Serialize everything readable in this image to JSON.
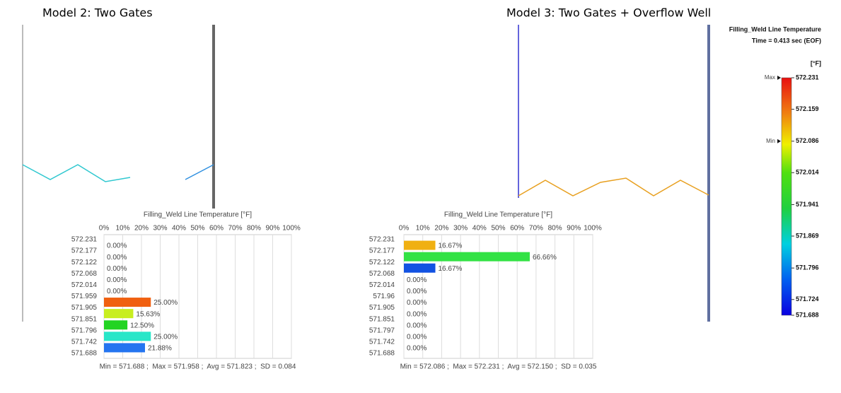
{
  "headings": [
    "Model 2: Two Gates",
    "Model 3: Two Gates + Overflow Well"
  ],
  "scale": {
    "title": "Filling_Weld Line Temperature",
    "time": "Time = 0.413 sec (EOF)",
    "unit": "[°F]",
    "ylim": [
      571.688,
      572.231
    ],
    "ticks": [
      572.231,
      572.159,
      572.086,
      572.014,
      571.941,
      571.869,
      571.796,
      571.724,
      571.688
    ],
    "markers": [
      {
        "label": "Max",
        "value": 572.231
      },
      {
        "label": "Min",
        "value": 572.086
      }
    ]
  },
  "chart_data": [
    {
      "type": "hbar-histogram",
      "title": "Filling_Weld Line Temperature [°F]",
      "bins": [
        572.231,
        572.177,
        572.122,
        572.068,
        572.014,
        571.959,
        571.905,
        571.851,
        571.796,
        571.742,
        571.688
      ],
      "values": [
        0,
        0,
        0,
        0,
        0,
        25,
        15.63,
        12.5,
        25,
        21.88
      ],
      "value_labels": [
        "0.00%",
        "0.00%",
        "0.00%",
        "0.00%",
        "0.00%",
        "25.00%",
        "15.63%",
        "12.50%",
        "25.00%",
        "21.88%"
      ],
      "colors": [
        "#f06010",
        "#f06010",
        "#f06010",
        "#f06010",
        "#f06010",
        "#f06010",
        "#c8ee20",
        "#22d422",
        "#28e6c8",
        "#2474f0"
      ],
      "xlim": [
        0,
        100
      ],
      "xticks": [
        {
          "value": 0,
          "label": "0%"
        },
        {
          "value": 10,
          "label": "10%"
        },
        {
          "value": 20,
          "label": "20%"
        },
        {
          "value": 30,
          "label": "30%"
        },
        {
          "value": 40,
          "label": "40%"
        },
        {
          "value": 50,
          "label": "50%"
        },
        {
          "value": 60,
          "label": "60%"
        },
        {
          "value": 70,
          "label": "70%"
        },
        {
          "value": 80,
          "label": "80%"
        },
        {
          "value": 90,
          "label": "90%"
        },
        {
          "value": 100,
          "label": "100%"
        }
      ],
      "grid": true,
      "footer": "Min = 571.688 ;  Max = 571.958 ;  Avg = 571.823 ;  SD = 0.084"
    },
    {
      "type": "hbar-histogram",
      "title": "Filling_Weld Line Temperature [°F]",
      "bins": [
        572.231,
        572.177,
        572.122,
        572.068,
        572.014,
        571.96,
        571.905,
        571.851,
        571.797,
        571.742,
        571.688
      ],
      "values": [
        16.67,
        66.66,
        16.67,
        0,
        0,
        0,
        0,
        0,
        0,
        0
      ],
      "value_labels": [
        "16.67%",
        "66.66%",
        "16.67%",
        "0.00%",
        "0.00%",
        "0.00%",
        "0.00%",
        "0.00%",
        "0.00%",
        "0.00%"
      ],
      "colors": [
        "#f0b012",
        "#32e244",
        "#1252e2",
        "#1252e2",
        "#1252e2",
        "#1252e2",
        "#1252e2",
        "#1252e2",
        "#1252e2",
        "#1252e2"
      ],
      "xlim": [
        0,
        100
      ],
      "xticks": [
        {
          "value": 0,
          "label": "0%"
        },
        {
          "value": 10,
          "label": "10%"
        },
        {
          "value": 20,
          "label": "20%"
        },
        {
          "value": 30,
          "label": "30%"
        },
        {
          "value": 40,
          "label": "40%"
        },
        {
          "value": 50,
          "label": "50%"
        },
        {
          "value": 60,
          "label": "60%"
        },
        {
          "value": 70,
          "label": "70%"
        },
        {
          "value": 80,
          "label": "80%"
        },
        {
          "value": 90,
          "label": "90%"
        },
        {
          "value": 100,
          "label": "100%"
        }
      ],
      "grid": true,
      "footer": "Min = 572.086 ;  Max = 572.231 ;  Avg = 572.150 ;  SD = 0.035"
    }
  ]
}
